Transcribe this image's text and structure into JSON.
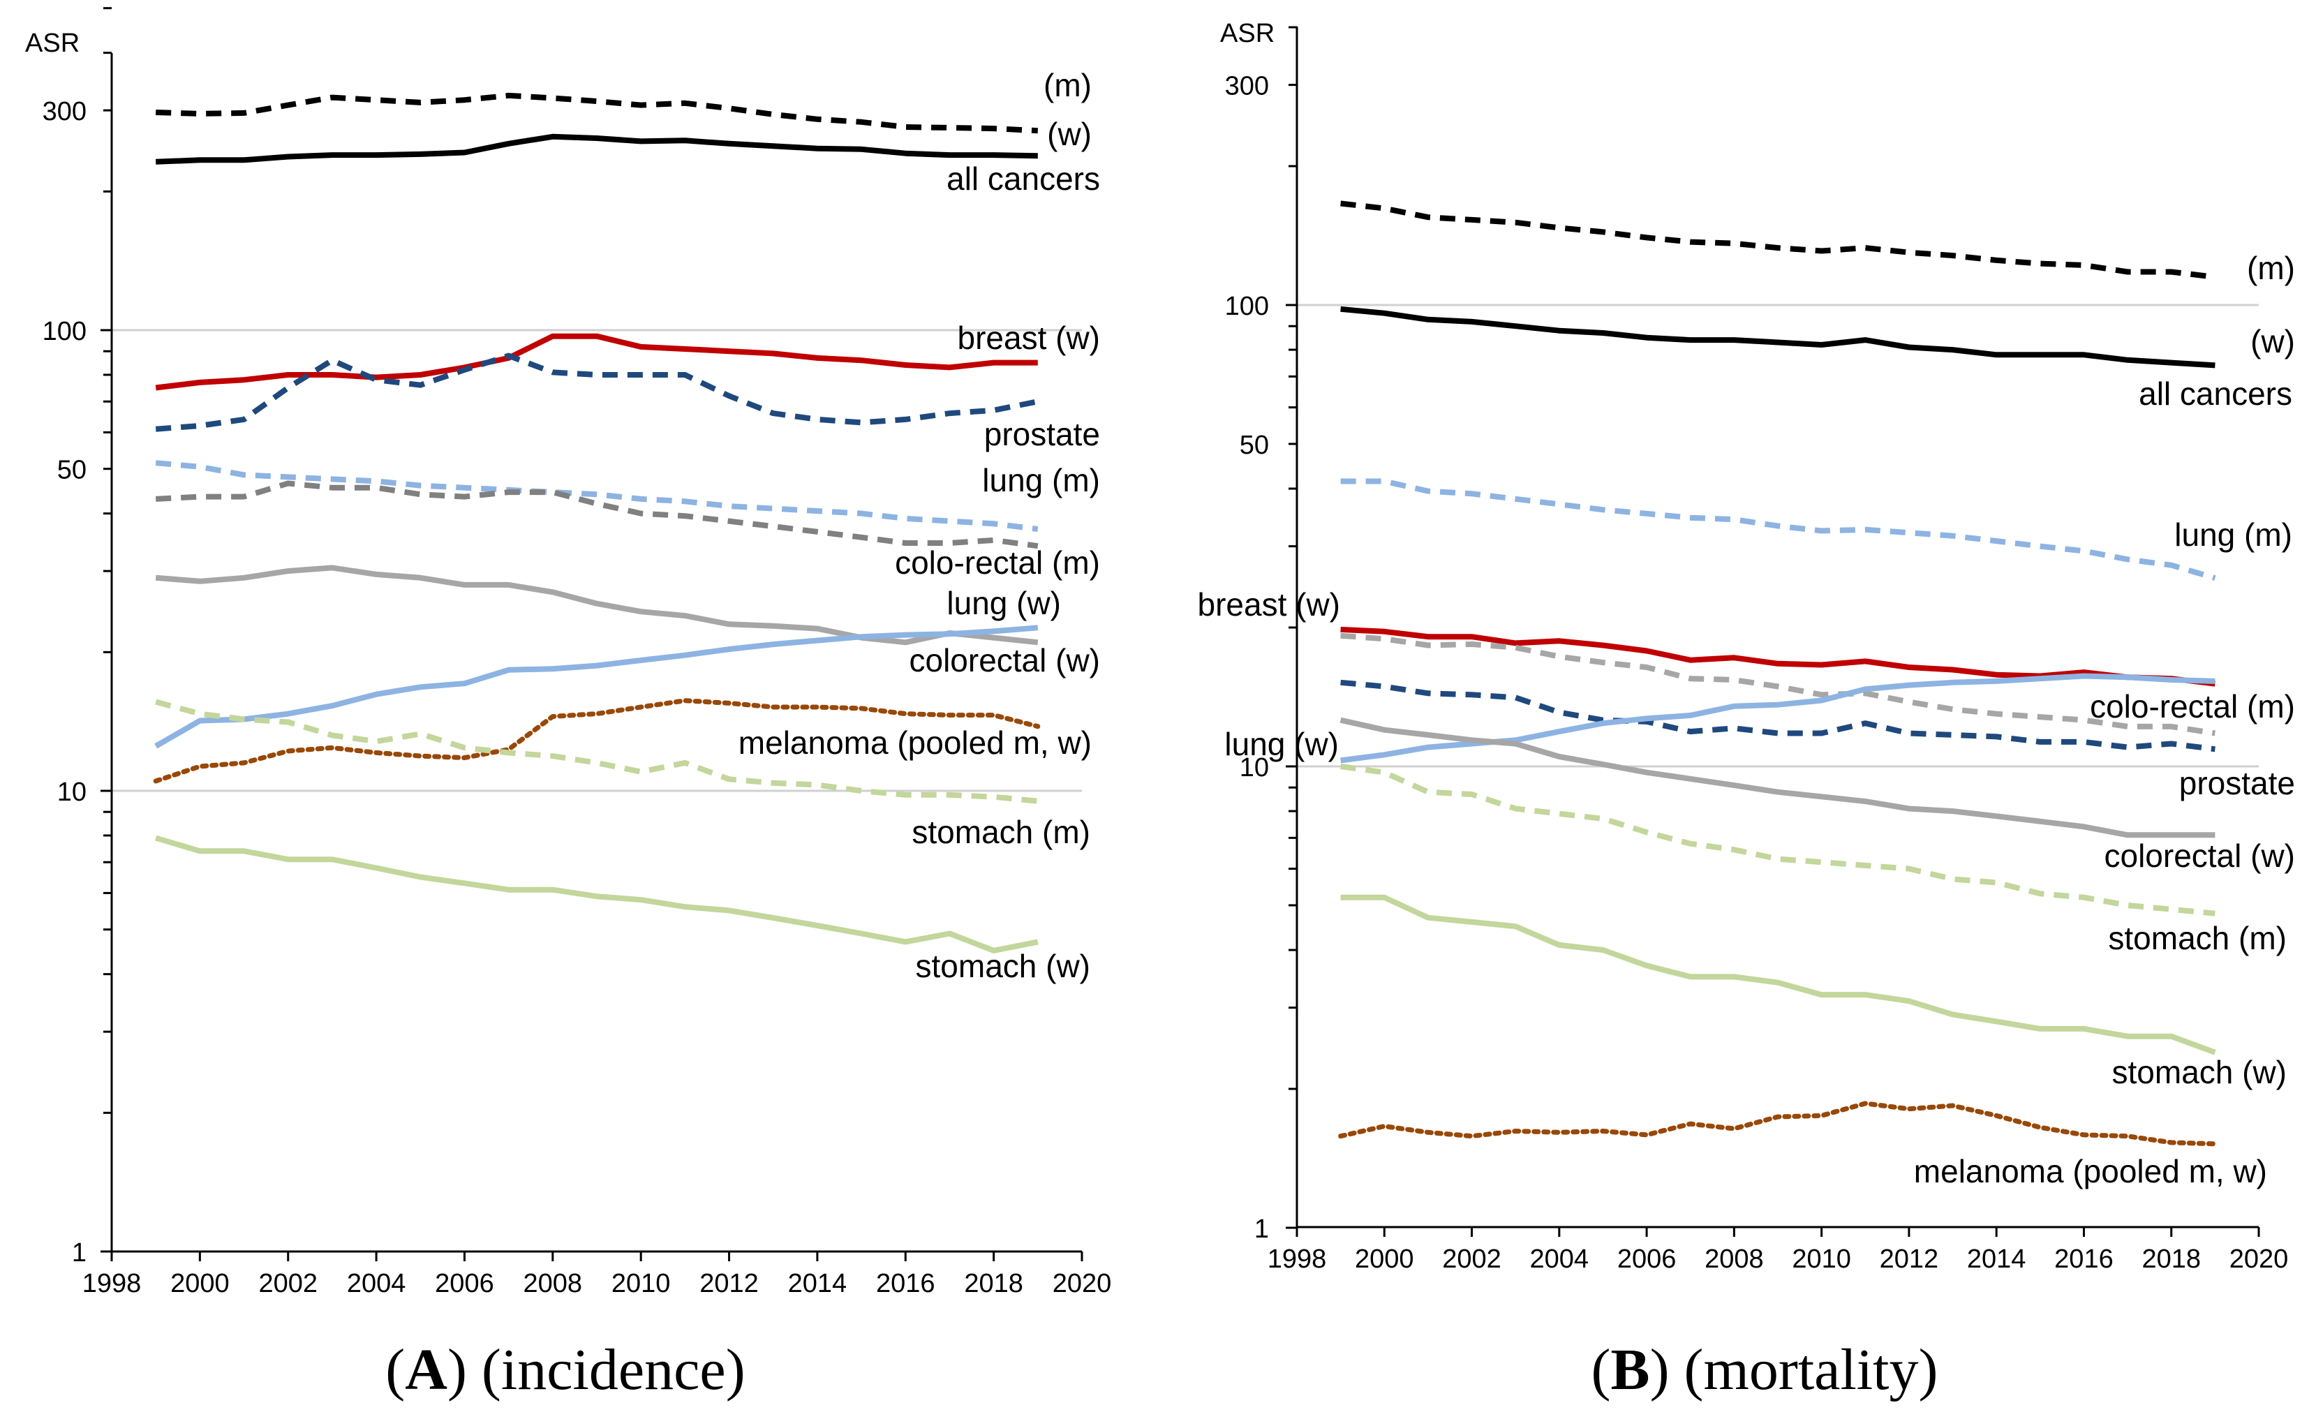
{
  "chart_data": [
    {
      "type": "line",
      "panel": "A",
      "caption_letter": "A",
      "caption_text": "(incidence)",
      "ylabel": "ASR",
      "yscale": "log",
      "ylim": [
        1,
        500
      ],
      "xlim": [
        1998,
        2020
      ],
      "x_ticks": [
        1998,
        2000,
        2002,
        2004,
        2006,
        2008,
        2010,
        2012,
        2014,
        2016,
        2018,
        2020
      ],
      "y_ticks": [
        {
          "value": 1,
          "label": "1"
        },
        {
          "value": 10,
          "label": "10"
        },
        {
          "value": 50,
          "label": "50"
        },
        {
          "value": 100,
          "label": "100"
        },
        {
          "value": 300,
          "label": "300"
        }
      ],
      "gridlines": [
        10,
        100
      ],
      "x": [
        1999,
        2000,
        2001,
        2002,
        2003,
        2004,
        2005,
        2006,
        2007,
        2008,
        2009,
        2010,
        2011,
        2012,
        2013,
        2014,
        2015,
        2016,
        2017,
        2018,
        2019
      ],
      "series": [
        {
          "name": "all cancers (m)",
          "color": "#000000",
          "style": "dashed",
          "values": [
            297,
            295,
            296,
            308,
            320,
            316,
            312,
            316,
            323,
            319,
            314,
            308,
            311,
            303,
            294,
            287,
            283,
            276,
            275,
            274,
            271
          ]
        },
        {
          "name": "all cancers (w)",
          "color": "#000000",
          "style": "solid",
          "values": [
            232,
            234,
            234,
            238,
            240,
            240,
            241,
            243,
            254,
            263,
            261,
            257,
            258,
            254,
            251,
            248,
            247,
            242,
            240,
            240,
            239
          ]
        },
        {
          "name": "breast (w)",
          "color": "#c00000",
          "style": "solid",
          "values": [
            75,
            77,
            78,
            80,
            80,
            79,
            80,
            83,
            87,
            97,
            97,
            92,
            91,
            90,
            89,
            87,
            86,
            84,
            83,
            85,
            85
          ]
        },
        {
          "name": "prostate",
          "color": "#1f497d",
          "style": "dashed",
          "values": [
            61,
            62,
            64,
            75,
            86,
            78,
            76,
            82,
            88,
            81,
            80,
            80,
            80,
            72,
            66,
            64,
            63,
            64,
            66,
            67,
            70
          ]
        },
        {
          "name": "lung (m)",
          "color": "#8db3e2",
          "style": "dashed",
          "values": [
            51.5,
            50.5,
            48.5,
            48,
            47.5,
            47,
            46,
            45.5,
            45,
            44.5,
            44,
            43,
            42.5,
            41.5,
            41,
            40.5,
            40,
            39,
            38.5,
            38,
            37
          ]
        },
        {
          "name": "colo-rectal (m)",
          "color": "#808080",
          "style": "dashed",
          "values": [
            43,
            43.5,
            43.5,
            46.5,
            45.5,
            45.5,
            44,
            43.5,
            44.5,
            44.5,
            42,
            40,
            39.5,
            38.5,
            37.5,
            36.5,
            35.5,
            34.5,
            34.5,
            35,
            34
          ]
        },
        {
          "name": "colorectal (w)",
          "color": "#a6a6a6",
          "style": "solid",
          "values": [
            29,
            28.5,
            29,
            30,
            30.5,
            29.5,
            29,
            28,
            28,
            27,
            25.5,
            24.5,
            24,
            23,
            22.8,
            22.5,
            21.5,
            21,
            22,
            21.5,
            21
          ]
        },
        {
          "name": "lung (w)",
          "color": "#8db3e2",
          "style": "solid",
          "values": [
            12.5,
            14.2,
            14.3,
            14.7,
            15.3,
            16.2,
            16.8,
            17.1,
            18.3,
            18.4,
            18.7,
            19.2,
            19.7,
            20.3,
            20.8,
            21.2,
            21.6,
            21.8,
            21.9,
            22.2,
            22.6
          ]
        },
        {
          "name": "melanoma (pooled m, w)",
          "color": "#984807",
          "style": "dotted",
          "values": [
            10.5,
            11.3,
            11.5,
            12.2,
            12.4,
            12.1,
            11.9,
            11.8,
            12.3,
            14.5,
            14.7,
            15.2,
            15.7,
            15.5,
            15.2,
            15.2,
            15.1,
            14.7,
            14.6,
            14.6,
            13.8
          ]
        },
        {
          "name": "stomach (m)",
          "color": "#c3d69b",
          "style": "dashed",
          "values": [
            15.6,
            14.7,
            14.3,
            14.1,
            13.2,
            12.8,
            13.3,
            12.4,
            12.1,
            11.9,
            11.5,
            11,
            11.5,
            10.6,
            10.4,
            10.3,
            10,
            9.8,
            9.8,
            9.7,
            9.5
          ]
        },
        {
          "name": "stomach (w)",
          "color": "#c3d69b",
          "style": "solid",
          "values": [
            7.9,
            7.4,
            7.4,
            7.1,
            7.1,
            6.8,
            6.5,
            6.3,
            6.1,
            6.1,
            5.9,
            5.8,
            5.6,
            5.5,
            5.3,
            5.1,
            4.9,
            4.7,
            4.9,
            4.5,
            4.7
          ]
        }
      ],
      "labels": [
        {
          "id": "all-cancers-m",
          "text": "(m)"
        },
        {
          "id": "all-cancers-w",
          "text": "(w)"
        },
        {
          "id": "all-cancers",
          "text": "all cancers"
        },
        {
          "id": "breast-w",
          "text": "breast (w)"
        },
        {
          "id": "prostate",
          "text": "prostate"
        },
        {
          "id": "lung-m",
          "text": "lung (m)"
        },
        {
          "id": "colo-rectal-m",
          "text": "colo-rectal (m)"
        },
        {
          "id": "lung-w",
          "text": "lung (w)"
        },
        {
          "id": "colorectal-w",
          "text": "colorectal (w)"
        },
        {
          "id": "melanoma",
          "text": "melanoma (pooled m, w)"
        },
        {
          "id": "stomach-m",
          "text": "stomach (m)"
        },
        {
          "id": "stomach-w",
          "text": "stomach (w)"
        }
      ]
    },
    {
      "type": "line",
      "panel": "B",
      "caption_letter": "B",
      "caption_text": "(mortality)",
      "ylabel": "ASR",
      "yscale": "log",
      "ylim": [
        1,
        500
      ],
      "xlim": [
        1998,
        2020
      ],
      "x_ticks": [
        1998,
        2000,
        2002,
        2004,
        2006,
        2008,
        2010,
        2012,
        2014,
        2016,
        2018,
        2020
      ],
      "y_ticks": [
        {
          "value": 1,
          "label": "1"
        },
        {
          "value": 10,
          "label": "10"
        },
        {
          "value": 50,
          "label": "50"
        },
        {
          "value": 100,
          "label": "100"
        },
        {
          "value": 300,
          "label": "300"
        }
      ],
      "gridlines": [
        10,
        100
      ],
      "x": [
        1999,
        2000,
        2001,
        2002,
        2003,
        2004,
        2005,
        2006,
        2007,
        2008,
        2009,
        2010,
        2011,
        2012,
        2013,
        2014,
        2015,
        2016,
        2017,
        2018,
        2019
      ],
      "series": [
        {
          "name": "all cancers (m)",
          "color": "#000000",
          "style": "dashed",
          "values": [
            166,
            162,
            155,
            153,
            151,
            147,
            144,
            140,
            137,
            136,
            133,
            131,
            133,
            130,
            128,
            125,
            123,
            122,
            118,
            118,
            115
          ]
        },
        {
          "name": "all cancers (w)",
          "color": "#000000",
          "style": "solid",
          "values": [
            98,
            96,
            93,
            92,
            90,
            88,
            87,
            85,
            84,
            84,
            83,
            82,
            84,
            81,
            80,
            78,
            78,
            78,
            76,
            75,
            74
          ]
        },
        {
          "name": "lung (m)",
          "color": "#8db3e2",
          "style": "dashed",
          "values": [
            41.5,
            41.5,
            39.5,
            39,
            38,
            37,
            36,
            35.3,
            34.6,
            34.3,
            33.2,
            32.4,
            32.6,
            32.1,
            31.6,
            30.8,
            30,
            29.3,
            28.1,
            27.3,
            25.6
          ]
        },
        {
          "name": "breast (w)",
          "color": "#c00000",
          "style": "solid",
          "values": [
            19.8,
            19.6,
            19.1,
            19.1,
            18.5,
            18.7,
            18.3,
            17.8,
            17,
            17.2,
            16.7,
            16.6,
            16.9,
            16.4,
            16.2,
            15.8,
            15.7,
            16,
            15.6,
            15.5,
            15.1
          ]
        },
        {
          "name": "colo-rectal (m)",
          "color": "#a6a6a6",
          "style": "dashed",
          "values": [
            19.2,
            18.9,
            18.3,
            18.4,
            18.1,
            17.3,
            16.8,
            16.4,
            15.5,
            15.4,
            14.9,
            14.3,
            14.4,
            13.8,
            13.3,
            13,
            12.8,
            12.6,
            12.2,
            12.2,
            11.8
          ]
        },
        {
          "name": "prostate",
          "color": "#1f497d",
          "style": "dashed",
          "values": [
            15.2,
            14.9,
            14.4,
            14.3,
            14.1,
            13.1,
            12.6,
            12.5,
            11.9,
            12.1,
            11.8,
            11.8,
            12.4,
            11.8,
            11.7,
            11.6,
            11.3,
            11.3,
            11,
            11.2,
            10.9
          ]
        },
        {
          "name": "lung (w)",
          "color": "#8db3e2",
          "style": "solid",
          "values": [
            10.3,
            10.6,
            11,
            11.2,
            11.4,
            11.9,
            12.4,
            12.7,
            12.9,
            13.5,
            13.6,
            13.9,
            14.7,
            15,
            15.2,
            15.3,
            15.5,
            15.7,
            15.6,
            15.4,
            15.3
          ]
        },
        {
          "name": "colorectal (w)",
          "color": "#a6a6a6",
          "style": "solid",
          "values": [
            12.6,
            12,
            11.7,
            11.4,
            11.2,
            10.5,
            10.1,
            9.7,
            9.4,
            9.1,
            8.8,
            8.6,
            8.4,
            8.1,
            8,
            7.8,
            7.6,
            7.4,
            7.1,
            7.1,
            7.1
          ]
        },
        {
          "name": "stomach (m)",
          "color": "#c3d69b",
          "style": "dashed",
          "values": [
            10,
            9.7,
            8.8,
            8.7,
            8.1,
            7.9,
            7.7,
            7.2,
            6.8,
            6.6,
            6.3,
            6.2,
            6.1,
            6,
            5.7,
            5.6,
            5.3,
            5.2,
            5,
            4.9,
            4.8
          ]
        },
        {
          "name": "stomach (w)",
          "color": "#c3d69b",
          "style": "solid",
          "values": [
            5.2,
            5.2,
            4.7,
            4.6,
            4.5,
            4.1,
            4,
            3.7,
            3.5,
            3.5,
            3.4,
            3.2,
            3.2,
            3.1,
            2.9,
            2.8,
            2.7,
            2.7,
            2.6,
            2.6,
            2.4
          ]
        },
        {
          "name": "melanoma (pooled m, w)",
          "color": "#984807",
          "style": "dotted",
          "values": [
            1.58,
            1.66,
            1.61,
            1.58,
            1.62,
            1.61,
            1.62,
            1.59,
            1.68,
            1.64,
            1.74,
            1.75,
            1.86,
            1.81,
            1.84,
            1.75,
            1.65,
            1.59,
            1.58,
            1.53,
            1.52
          ]
        }
      ],
      "labels": [
        {
          "id": "all-cancers-m",
          "text": "(m)"
        },
        {
          "id": "all-cancers-w",
          "text": "(w)"
        },
        {
          "id": "all-cancers",
          "text": "all cancers"
        },
        {
          "id": "lung-m",
          "text": "lung (m)"
        },
        {
          "id": "breast-w",
          "text": "breast (w)"
        },
        {
          "id": "colo-rectal-m",
          "text": "colo-rectal (m)"
        },
        {
          "id": "lung-w",
          "text": "lung (w)"
        },
        {
          "id": "prostate",
          "text": "prostate"
        },
        {
          "id": "colorectal-w",
          "text": "colorectal (w)"
        },
        {
          "id": "stomach-m",
          "text": "stomach (m)"
        },
        {
          "id": "stomach-w",
          "text": "stomach (w)"
        },
        {
          "id": "melanoma",
          "text": "melanoma (pooled m, w)"
        }
      ]
    }
  ]
}
